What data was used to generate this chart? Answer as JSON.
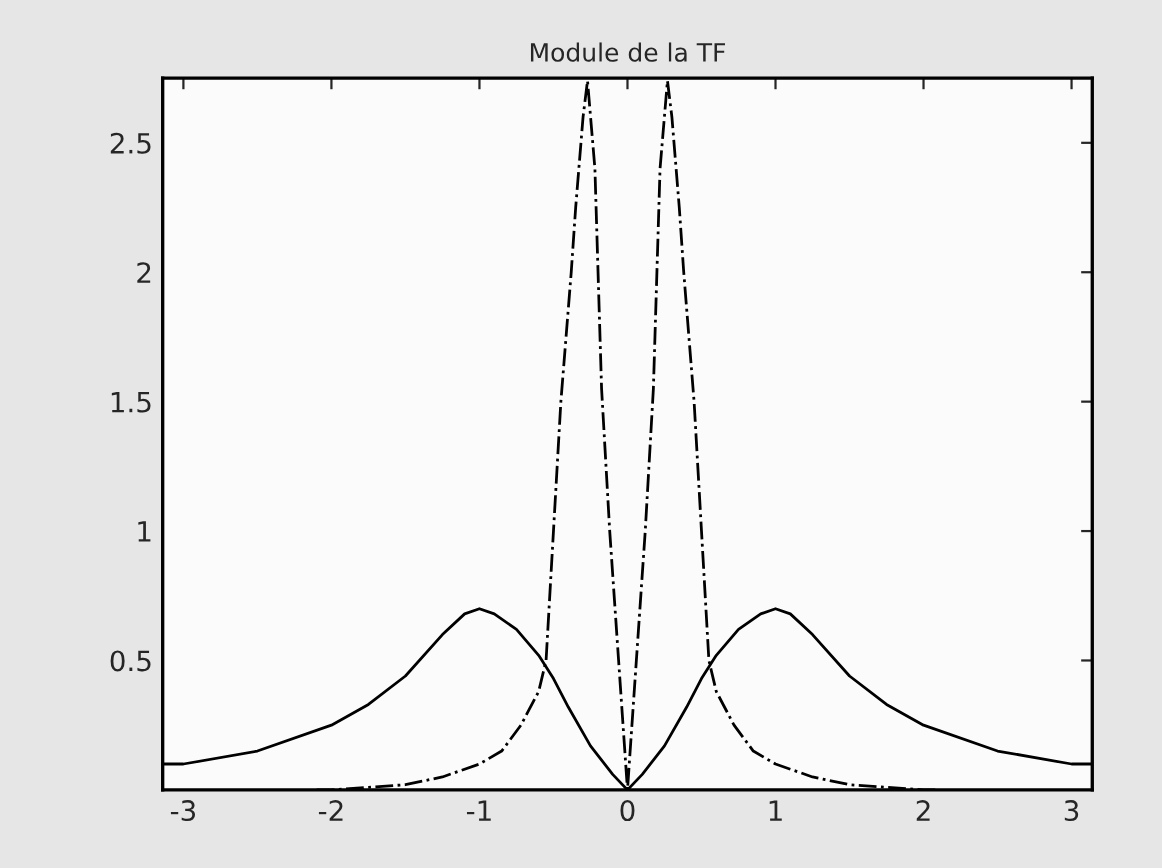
{
  "chart_data": {
    "type": "line",
    "title": "Module de la TF",
    "xlim": [
      -3.14,
      3.14
    ],
    "ylim": [
      0,
      2.75
    ],
    "xticks": [
      -3,
      -2,
      -1,
      0,
      1,
      2,
      3
    ],
    "yticks": [
      0.5,
      1,
      1.5,
      2,
      2.5
    ],
    "grid": false,
    "marker": "none",
    "series": [
      {
        "color": "#000000",
        "line_style": "solid",
        "x": [
          -3.14,
          -3,
          -2.5,
          -2,
          -1.75,
          -1.5,
          -1.25,
          -1.1,
          -1,
          -0.9,
          -0.75,
          -0.6,
          -0.5,
          -0.4,
          -0.25,
          -0.1,
          0,
          0.1,
          0.25,
          0.4,
          0.5,
          0.6,
          0.75,
          0.9,
          1,
          1.1,
          1.25,
          1.5,
          1.75,
          2,
          2.5,
          3,
          3.14
        ],
        "values": [
          0.1,
          0.1,
          0.15,
          0.25,
          0.33,
          0.44,
          0.6,
          0.68,
          0.7,
          0.68,
          0.62,
          0.52,
          0.43,
          0.32,
          0.17,
          0.06,
          0,
          0.06,
          0.17,
          0.32,
          0.43,
          0.52,
          0.62,
          0.68,
          0.7,
          0.68,
          0.6,
          0.44,
          0.33,
          0.25,
          0.15,
          0.1,
          0.1
        ]
      },
      {
        "color": "#000000",
        "line_style": "dashdot",
        "x": [
          -2.1,
          -2,
          -1.5,
          -1.25,
          -1,
          -0.85,
          -0.72,
          -0.6,
          -0.55,
          -0.5,
          -0.45,
          -0.38,
          -0.35,
          -0.3,
          -0.27,
          -0.22,
          -0.175,
          -0.12,
          -0.06,
          0,
          0.06,
          0.12,
          0.175,
          0.22,
          0.27,
          0.3,
          0.35,
          0.38,
          0.45,
          0.5,
          0.55,
          0.6,
          0.72,
          0.85,
          1,
          1.25,
          1.5,
          2,
          2.1
        ],
        "values": [
          0,
          0,
          0.02,
          0.05,
          0.1,
          0.15,
          0.25,
          0.38,
          0.5,
          1.0,
          1.5,
          2.0,
          2.25,
          2.6,
          2.74,
          2.4,
          1.55,
          1.0,
          0.5,
          0,
          0.5,
          1.0,
          1.55,
          2.4,
          2.74,
          2.6,
          2.25,
          2.0,
          1.5,
          1.0,
          0.5,
          0.38,
          0.25,
          0.15,
          0.1,
          0.05,
          0.02,
          0,
          0
        ]
      }
    ]
  }
}
